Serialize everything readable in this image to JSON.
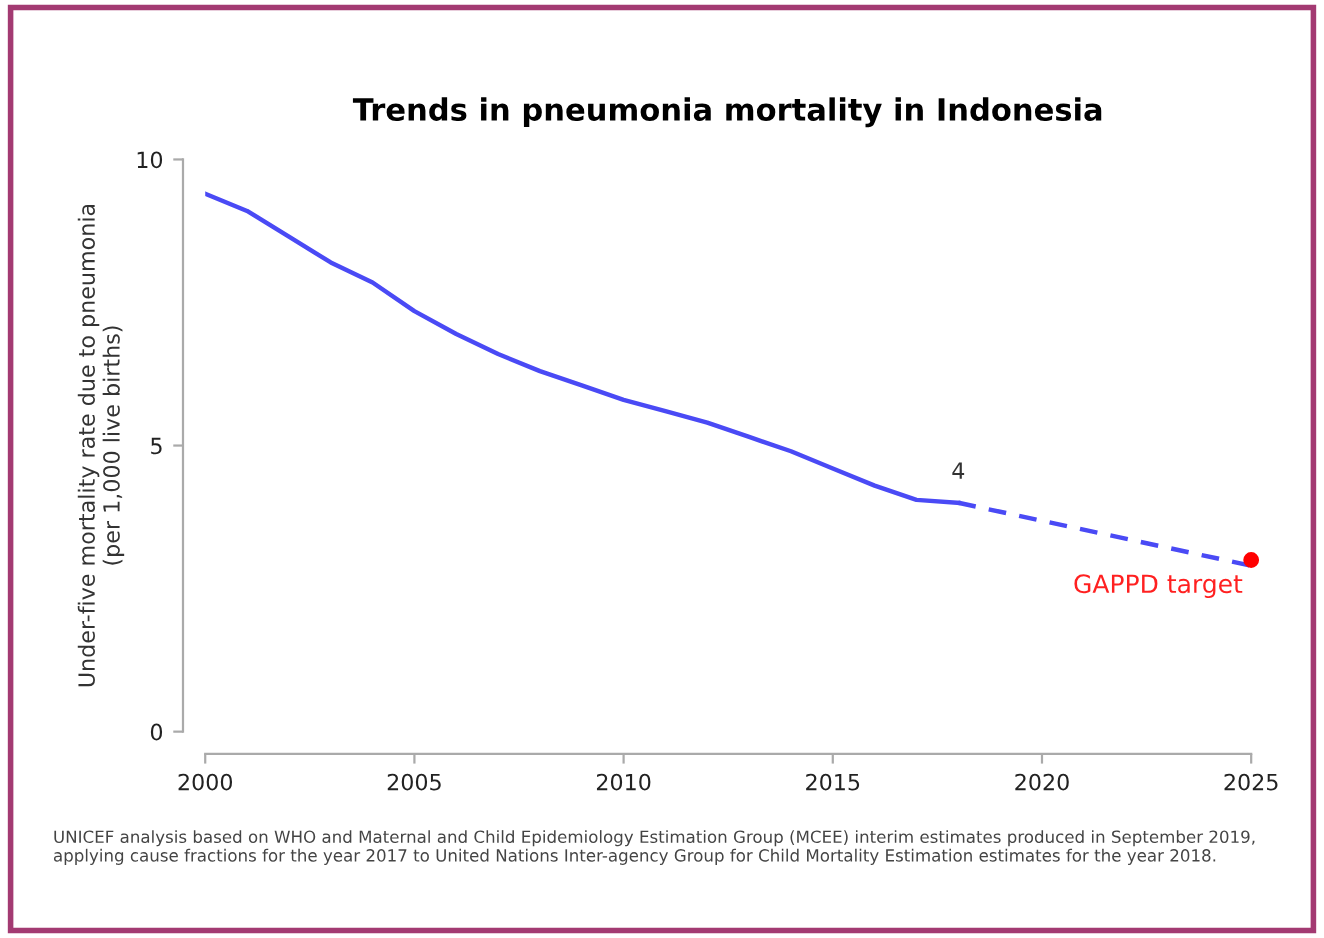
{
  "chart_data": {
    "type": "line",
    "title": "Trends in pneumonia mortality in Indonesia",
    "ylabel": "Under-five mortality rate due to pneumonia\n(per 1,000 live births)",
    "xlim": [
      2000,
      2025
    ],
    "xticks": [
      2000,
      2005,
      2010,
      2015,
      2020,
      2025
    ],
    "ylim": [
      0,
      10
    ],
    "yticks": [
      0,
      5,
      10
    ],
    "grid": false,
    "legend": false,
    "series": [
      {
        "color": "#4a4af5",
        "line_style": "solid",
        "x": [
          2000,
          2001,
          2002,
          2003,
          2004,
          2005,
          2006,
          2007,
          2008,
          2009,
          2010,
          2011,
          2012,
          2013,
          2014,
          2015,
          2016,
          2017,
          2018
        ],
        "values": [
          9.4,
          9.1,
          8.65,
          8.2,
          7.85,
          7.35,
          6.95,
          6.6,
          6.3,
          6.05,
          5.8,
          5.6,
          5.4,
          5.15,
          4.9,
          4.6,
          4.3,
          4.05,
          4.0
        ],
        "value_labels": [
          null,
          null,
          null,
          null,
          null,
          null,
          null,
          null,
          null,
          null,
          null,
          null,
          null,
          null,
          null,
          null,
          null,
          null,
          "4"
        ]
      },
      {
        "type": "line",
        "color": "#4a4af5",
        "line_style": "dashed",
        "x": [
          2018,
          2025
        ],
        "values": [
          4.0,
          2.9
        ]
      },
      {
        "type": "scatter",
        "color": "#ff0000",
        "marker": "circle",
        "x": [
          2025
        ],
        "values": [
          3.0
        ]
      }
    ],
    "annotations": [
      {
        "text": "GAPPD target",
        "x": 2025,
        "y": 3.0
      },
      "UNICEF analysis based on WHO and Maternal and Child Epidemiology Estimation Group (MCEE) interim estimates produced in September 2019, applying cause fractions for the year 2017 to United Nations Inter-agency Group for Child Mortality Estimation estimates for the year 2018."
    ]
  }
}
